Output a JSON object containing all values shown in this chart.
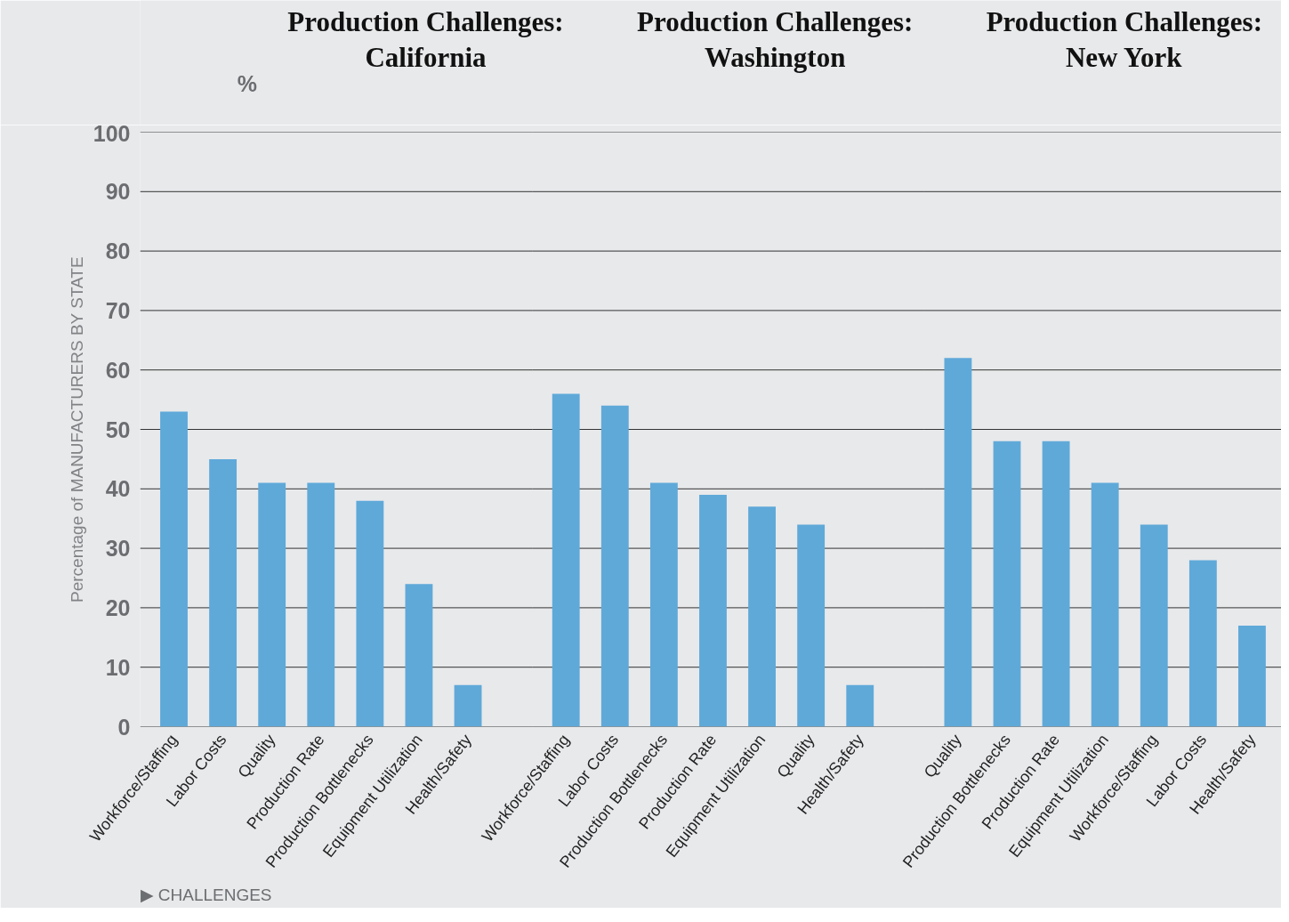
{
  "chart_data": [
    {
      "type": "bar",
      "title": "Production Challenges:\nCalifornia",
      "ylabel": "Percentage of MANUFACTURERS BY STATE",
      "xlabel": "▶ CHALLENGES",
      "annotations": [
        "%"
      ],
      "categories": [
        "Workforce/Staffing",
        "Labor Costs",
        "Quality",
        "Production Rate",
        "Production Bottlenecks",
        "Equipment Utilization",
        "Health/Safety"
      ],
      "values": [
        53,
        45,
        41,
        41,
        38,
        24,
        7
      ],
      "color": "#5fa9d9",
      "ylim": [
        0,
        100
      ],
      "yticks": [
        0,
        10,
        20,
        30,
        40,
        50,
        60,
        70,
        80,
        90,
        100
      ],
      "grid": "y"
    },
    {
      "type": "bar",
      "title": "Production Challenges:\nWashington",
      "categories": [
        "Workforce/Staffing",
        "Labor Costs",
        "Production Bottlenecks",
        "Production Rate",
        "Equipment Utilization",
        "Quality",
        "Health/Safety"
      ],
      "values": [
        56,
        54,
        41,
        39,
        37,
        34,
        7
      ],
      "color": "#5fa9d9",
      "ylim": [
        0,
        100
      ],
      "yticks": [
        0,
        10,
        20,
        30,
        40,
        50,
        60,
        70,
        80,
        90,
        100
      ],
      "grid": "y",
      "tick_labels": "x"
    },
    {
      "type": "bar",
      "title": "Production Challenges:\nNew York",
      "categories": [
        "Quality",
        "Production Bottlenecks",
        "Production Rate",
        "Equipment Utilization",
        "Workforce/Staffing",
        "Labor Costs",
        "Health/Safety"
      ],
      "values": [
        62,
        48,
        48,
        41,
        34,
        28,
        17
      ],
      "color": "#5fa9d9",
      "ylim": [
        0,
        100
      ],
      "yticks": [
        0,
        10,
        20,
        30,
        40,
        50,
        60,
        70,
        80,
        90,
        100
      ],
      "grid": "y",
      "tick_labels": "x"
    }
  ]
}
